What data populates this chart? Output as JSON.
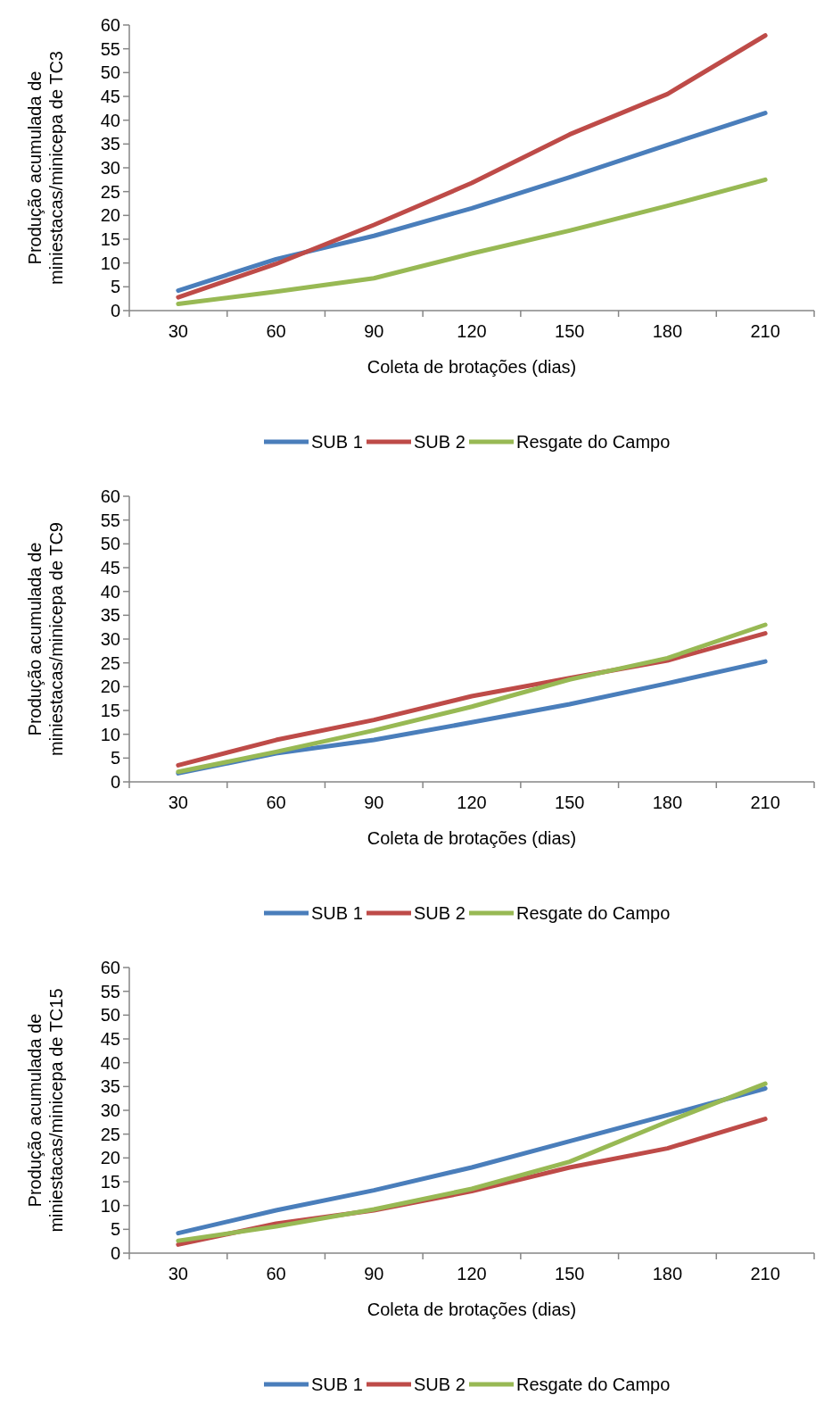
{
  "chart_data": [
    {
      "type": "line",
      "categories": [
        "30",
        "60",
        "90",
        "120",
        "150",
        "180",
        "210"
      ],
      "xlabel": "Coleta de brotações (dias)",
      "ylabel": "Produção acumulada de miniestacas/minicepa de TC3",
      "ylim": [
        0,
        60
      ],
      "yticks": [
        0,
        5,
        10,
        15,
        20,
        25,
        30,
        35,
        40,
        45,
        50,
        55,
        60
      ],
      "legend": "bottom",
      "marker": "none",
      "series": [
        {
          "name": "SUB 1",
          "color": "#4a7ebb",
          "values": [
            4.2,
            10.8,
            15.7,
            21.5,
            28,
            34.8,
            41.5
          ]
        },
        {
          "name": "SUB 2",
          "color": "#be4b48",
          "values": [
            2.8,
            9.8,
            18,
            26.8,
            37,
            45.5,
            57.8
          ]
        },
        {
          "name": "Resgate do Campo",
          "color": "#98b954",
          "values": [
            1.4,
            4,
            6.8,
            12,
            16.8,
            22,
            27.5
          ]
        }
      ]
    },
    {
      "type": "line",
      "categories": [
        "30",
        "60",
        "90",
        "120",
        "150",
        "180",
        "210"
      ],
      "xlabel": "Coleta de brotações (dias)",
      "ylabel": "Produção acumulada de miniestacas/minicepa de TC9",
      "ylim": [
        0,
        60
      ],
      "yticks": [
        0,
        5,
        10,
        15,
        20,
        25,
        30,
        35,
        40,
        45,
        50,
        55,
        60
      ],
      "legend": "bottom",
      "marker": "none",
      "series": [
        {
          "name": "SUB 1",
          "color": "#4a7ebb",
          "values": [
            1.8,
            6,
            8.8,
            12.5,
            16.3,
            20.7,
            25.3
          ]
        },
        {
          "name": "SUB 2",
          "color": "#be4b48",
          "values": [
            3.5,
            8.8,
            13,
            18,
            21.8,
            25.5,
            31.2
          ]
        },
        {
          "name": "Resgate do Campo",
          "color": "#98b954",
          "values": [
            2.1,
            6.3,
            10.8,
            15.8,
            21.5,
            26,
            33
          ]
        }
      ]
    },
    {
      "type": "line",
      "categories": [
        "30",
        "60",
        "90",
        "120",
        "150",
        "180",
        "210"
      ],
      "xlabel": "Coleta de brotações (dias)",
      "ylabel": "Produção acumulada de miniestacas/minicepa de TC15",
      "ylim": [
        0,
        60
      ],
      "yticks": [
        0,
        5,
        10,
        15,
        20,
        25,
        30,
        35,
        40,
        45,
        50,
        55,
        60
      ],
      "legend": "bottom",
      "marker": "none",
      "series": [
        {
          "name": "SUB 1",
          "color": "#4a7ebb",
          "values": [
            4.2,
            9,
            13.2,
            18,
            23.5,
            29,
            34.6
          ]
        },
        {
          "name": "SUB 2",
          "color": "#be4b48",
          "values": [
            1.8,
            6.2,
            9,
            13,
            18,
            22,
            28.2
          ]
        },
        {
          "name": "Resgate do Campo",
          "color": "#98b954",
          "values": [
            2.6,
            5.6,
            9.2,
            13.5,
            19.2,
            27.6,
            35.6
          ]
        }
      ]
    }
  ]
}
